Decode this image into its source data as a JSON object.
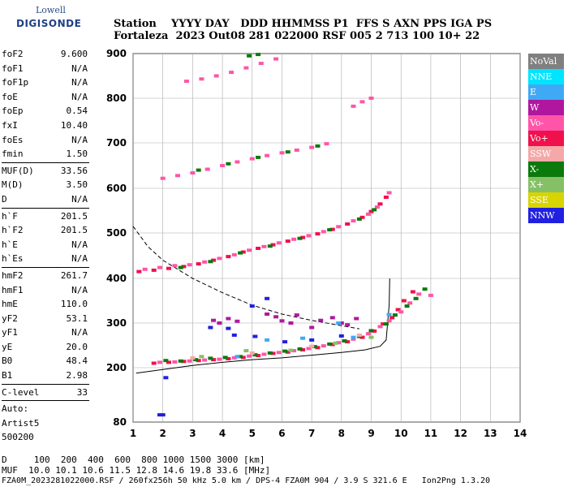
{
  "header": {
    "logo_top": "Lowell",
    "logo_bottom": "DIGISONDE",
    "line1": "Station    YYYY DAY   DDD HHMMSS P1  FFS S AXN PPS IGA PS",
    "line2": "Fortaleza  2023 Out08 281 022000 RSF 005 2 713 100 10+ 22"
  },
  "params": [
    {
      "label": "foF2",
      "value": "9.600"
    },
    {
      "label": "foF1",
      "value": "N/A"
    },
    {
      "label": "foF1p",
      "value": "N/A"
    },
    {
      "label": "foE",
      "value": "N/A"
    },
    {
      "label": "foEp",
      "value": "0.54"
    },
    {
      "label": "fxI",
      "value": "10.40"
    },
    {
      "label": "foEs",
      "value": "N/A"
    },
    {
      "label": "fmin",
      "value": "1.50"
    },
    {
      "sep": true
    },
    {
      "label": "MUF(D)",
      "value": "33.56"
    },
    {
      "label": "M(D)",
      "value": "3.50"
    },
    {
      "label": "D",
      "value": "N/A"
    },
    {
      "sep": true
    },
    {
      "label": "h`F",
      "value": "201.5"
    },
    {
      "label": "h`F2",
      "value": "201.5"
    },
    {
      "label": "h`E",
      "value": "N/A"
    },
    {
      "label": "h`Es",
      "value": "N/A"
    },
    {
      "sep": true
    },
    {
      "label": "hmF2",
      "value": "261.7"
    },
    {
      "label": "hmF1",
      "value": "N/A"
    },
    {
      "label": "hmE",
      "value": "110.0"
    },
    {
      "label": "yF2",
      "value": "53.1"
    },
    {
      "label": "yF1",
      "value": "N/A"
    },
    {
      "label": "yE",
      "value": "20.0"
    },
    {
      "label": "B0",
      "value": "48.4"
    },
    {
      "label": "B1",
      "value": "2.98"
    },
    {
      "sep": true
    },
    {
      "label": "C-level",
      "value": "33"
    },
    {
      "sep": true
    },
    {
      "label": "Auto:",
      "value": ""
    },
    {
      "label": "Artist5",
      "value": ""
    },
    {
      "label": "500200",
      "value": ""
    }
  ],
  "footer": {
    "d_line": "D     100  200  400  600  800 1000 1500 3000 [km]",
    "muf_line": "MUF  10.0 10.1 10.6 11.5 12.8 14.6 19.8 33.6 [MHz]",
    "file_line": "FZA0M_2023281022000.RSF / 260fx256h 50 kHz 5.0 km / DPS-4 FZA0M 904 / 3.9 S 321.6 E   Ion2Png 1.3.20"
  },
  "legend": [
    {
      "label": "NoVal",
      "color": "#808080"
    },
    {
      "label": "NNE",
      "color": "#00e5ff"
    },
    {
      "label": "E",
      "color": "#3fa9f5"
    },
    {
      "label": "W",
      "color": "#b0179e"
    },
    {
      "label": "Vo-",
      "color": "#ff55a8"
    },
    {
      "label": "Vo+",
      "color": "#f0104c"
    },
    {
      "label": "SSW",
      "color": "#f4a8a8"
    },
    {
      "label": "X-",
      "color": "#0a7a0a"
    },
    {
      "label": "X+",
      "color": "#86c066"
    },
    {
      "label": "SSE",
      "color": "#d8d400"
    },
    {
      "label": "NNW",
      "color": "#2020e0"
    }
  ],
  "chart_data": {
    "type": "scatter",
    "xlim": [
      1,
      14
    ],
    "xticks": [
      1,
      2,
      3,
      4,
      5,
      6,
      7,
      8,
      9,
      10,
      11,
      12,
      13,
      14
    ],
    "yticks": [
      80,
      200,
      300,
      400,
      500,
      600,
      700,
      800,
      900
    ],
    "grid": true,
    "legend_position": "right",
    "series": [
      {
        "color": "#f0104c",
        "points": [
          [
            1.7,
            210
          ],
          [
            2.2,
            212
          ],
          [
            2.7,
            214
          ],
          [
            3.2,
            216
          ],
          [
            3.7,
            218
          ],
          [
            4.2,
            220
          ],
          [
            4.7,
            223
          ],
          [
            5.2,
            227
          ],
          [
            5.7,
            232
          ],
          [
            6.2,
            235
          ],
          [
            6.7,
            240
          ],
          [
            7.2,
            245
          ],
          [
            7.7,
            252
          ],
          [
            8.2,
            258
          ],
          [
            8.7,
            268
          ],
          [
            9.1,
            282
          ],
          [
            9.4,
            298
          ],
          [
            9.7,
            312
          ],
          [
            9.9,
            330
          ],
          [
            10.1,
            350
          ],
          [
            10.4,
            370
          ]
        ]
      },
      {
        "color": "#ff55a8",
        "points": [
          [
            1.9,
            212
          ],
          [
            2.4,
            213
          ],
          [
            2.9,
            215
          ],
          [
            3.4,
            217
          ],
          [
            3.9,
            219
          ],
          [
            4.4,
            222
          ],
          [
            4.9,
            226
          ],
          [
            5.4,
            230
          ],
          [
            5.9,
            234
          ],
          [
            6.4,
            238
          ],
          [
            6.9,
            243
          ],
          [
            7.4,
            249
          ],
          [
            7.9,
            256
          ],
          [
            8.4,
            264
          ],
          [
            8.9,
            276
          ],
          [
            9.3,
            292
          ],
          [
            9.6,
            305
          ],
          [
            10.0,
            325
          ],
          [
            10.3,
            345
          ],
          [
            10.6,
            365
          ],
          [
            11.0,
            362
          ]
        ]
      },
      {
        "color": "#0a7a0a",
        "points": [
          [
            2.1,
            216
          ],
          [
            2.6,
            215
          ],
          [
            3.1,
            218
          ],
          [
            3.6,
            221
          ],
          [
            4.1,
            223
          ],
          [
            4.6,
            225
          ],
          [
            5.1,
            229
          ],
          [
            5.6,
            233
          ],
          [
            6.1,
            237
          ],
          [
            6.6,
            242
          ],
          [
            7.1,
            247
          ],
          [
            7.6,
            253
          ],
          [
            8.1,
            260
          ],
          [
            8.6,
            270
          ],
          [
            9.0,
            283
          ],
          [
            9.5,
            298
          ],
          [
            9.8,
            318
          ],
          [
            10.2,
            338
          ],
          [
            10.5,
            355
          ],
          [
            10.8,
            376
          ]
        ]
      },
      {
        "color": "#f0104c",
        "points": [
          [
            1.2,
            415
          ],
          [
            1.7,
            418
          ],
          [
            2.2,
            422
          ],
          [
            2.7,
            426
          ],
          [
            3.2,
            432
          ],
          [
            3.7,
            440
          ],
          [
            4.2,
            448
          ],
          [
            4.7,
            458
          ],
          [
            5.2,
            466
          ],
          [
            5.7,
            474
          ],
          [
            6.2,
            482
          ],
          [
            6.7,
            490
          ],
          [
            7.2,
            498
          ],
          [
            7.7,
            508
          ],
          [
            8.2,
            520
          ],
          [
            8.7,
            535
          ],
          [
            9.0,
            548
          ],
          [
            9.3,
            565
          ],
          [
            9.5,
            580
          ]
        ]
      },
      {
        "color": "#ff55a8",
        "points": [
          [
            1.4,
            420
          ],
          [
            1.9,
            424
          ],
          [
            2.4,
            428
          ],
          [
            2.9,
            430
          ],
          [
            3.4,
            436
          ],
          [
            3.9,
            444
          ],
          [
            4.4,
            452
          ],
          [
            4.9,
            462
          ],
          [
            5.4,
            470
          ],
          [
            5.9,
            478
          ],
          [
            6.4,
            486
          ],
          [
            6.9,
            494
          ],
          [
            7.4,
            503
          ],
          [
            7.9,
            514
          ],
          [
            8.4,
            527
          ],
          [
            8.9,
            542
          ],
          [
            9.2,
            558
          ],
          [
            9.6,
            590
          ]
        ]
      },
      {
        "color": "#0a7a0a",
        "points": [
          [
            2.6,
            424
          ],
          [
            3.6,
            437
          ],
          [
            4.6,
            456
          ],
          [
            5.6,
            471
          ],
          [
            6.6,
            488
          ],
          [
            7.6,
            507
          ],
          [
            8.6,
            531
          ],
          [
            9.1,
            552
          ]
        ]
      },
      {
        "color": "#ff55a8",
        "points": [
          [
            2.0,
            622
          ],
          [
            2.5,
            628
          ],
          [
            3.0,
            634
          ],
          [
            3.5,
            642
          ],
          [
            4.0,
            650
          ],
          [
            4.5,
            658
          ],
          [
            5.0,
            665
          ],
          [
            5.5,
            672
          ],
          [
            6.0,
            678
          ],
          [
            6.5,
            684
          ],
          [
            7.0,
            690
          ],
          [
            7.5,
            698
          ]
        ]
      },
      {
        "color": "#0a7a0a",
        "points": [
          [
            3.2,
            640
          ],
          [
            4.2,
            654
          ],
          [
            5.2,
            668
          ],
          [
            6.2,
            680
          ],
          [
            7.2,
            693
          ]
        ]
      },
      {
        "color": "#ff55a8",
        "points": [
          [
            2.8,
            838
          ],
          [
            3.3,
            843
          ],
          [
            3.8,
            850
          ],
          [
            4.3,
            858
          ],
          [
            4.8,
            868
          ],
          [
            5.3,
            878
          ],
          [
            5.8,
            888
          ]
        ]
      },
      {
        "color": "#ff55a8",
        "points": [
          [
            8.4,
            782
          ],
          [
            8.7,
            792
          ],
          [
            9.0,
            800
          ]
        ]
      },
      {
        "color": "#0a7a0a",
        "points": [
          [
            4.9,
            895
          ],
          [
            5.2,
            898
          ]
        ]
      },
      {
        "color": "#b0179e",
        "points": [
          [
            3.7,
            306
          ],
          [
            3.9,
            300
          ],
          [
            4.2,
            310
          ],
          [
            4.5,
            304
          ],
          [
            5.5,
            320
          ],
          [
            5.8,
            314
          ],
          [
            6.0,
            305
          ],
          [
            6.3,
            300
          ],
          [
            6.5,
            318
          ],
          [
            7.0,
            290
          ],
          [
            7.3,
            306
          ],
          [
            7.7,
            312
          ],
          [
            8.0,
            300
          ],
          [
            8.2,
            296
          ],
          [
            8.5,
            310
          ]
        ]
      },
      {
        "color": "#2020e0",
        "points": [
          [
            2.1,
            178
          ],
          [
            3.6,
            290
          ],
          [
            4.2,
            288
          ],
          [
            4.4,
            273
          ],
          [
            5.1,
            270
          ],
          [
            6.1,
            258
          ],
          [
            7.0,
            262
          ],
          [
            8.0,
            271
          ],
          [
            5.0,
            338
          ],
          [
            5.5,
            355
          ],
          [
            1.9,
            96
          ],
          [
            2.0,
            96
          ]
        ]
      },
      {
        "color": "#3fa9f5",
        "points": [
          [
            4.5,
            225
          ],
          [
            5.5,
            262
          ],
          [
            6.7,
            266
          ],
          [
            7.9,
            300
          ],
          [
            8.4,
            268
          ],
          [
            9.6,
            319
          ]
        ]
      },
      {
        "color": "#86c066",
        "points": [
          [
            3.3,
            225
          ],
          [
            4.8,
            238
          ],
          [
            6.3,
            239
          ],
          [
            7.8,
            255
          ],
          [
            9.0,
            268
          ]
        ]
      },
      {
        "color": "#f4a8a8",
        "points": [
          [
            3.0,
            222
          ],
          [
            5.0,
            233
          ],
          [
            7.0,
            248
          ],
          [
            8.6,
            273
          ]
        ]
      }
    ]
  }
}
